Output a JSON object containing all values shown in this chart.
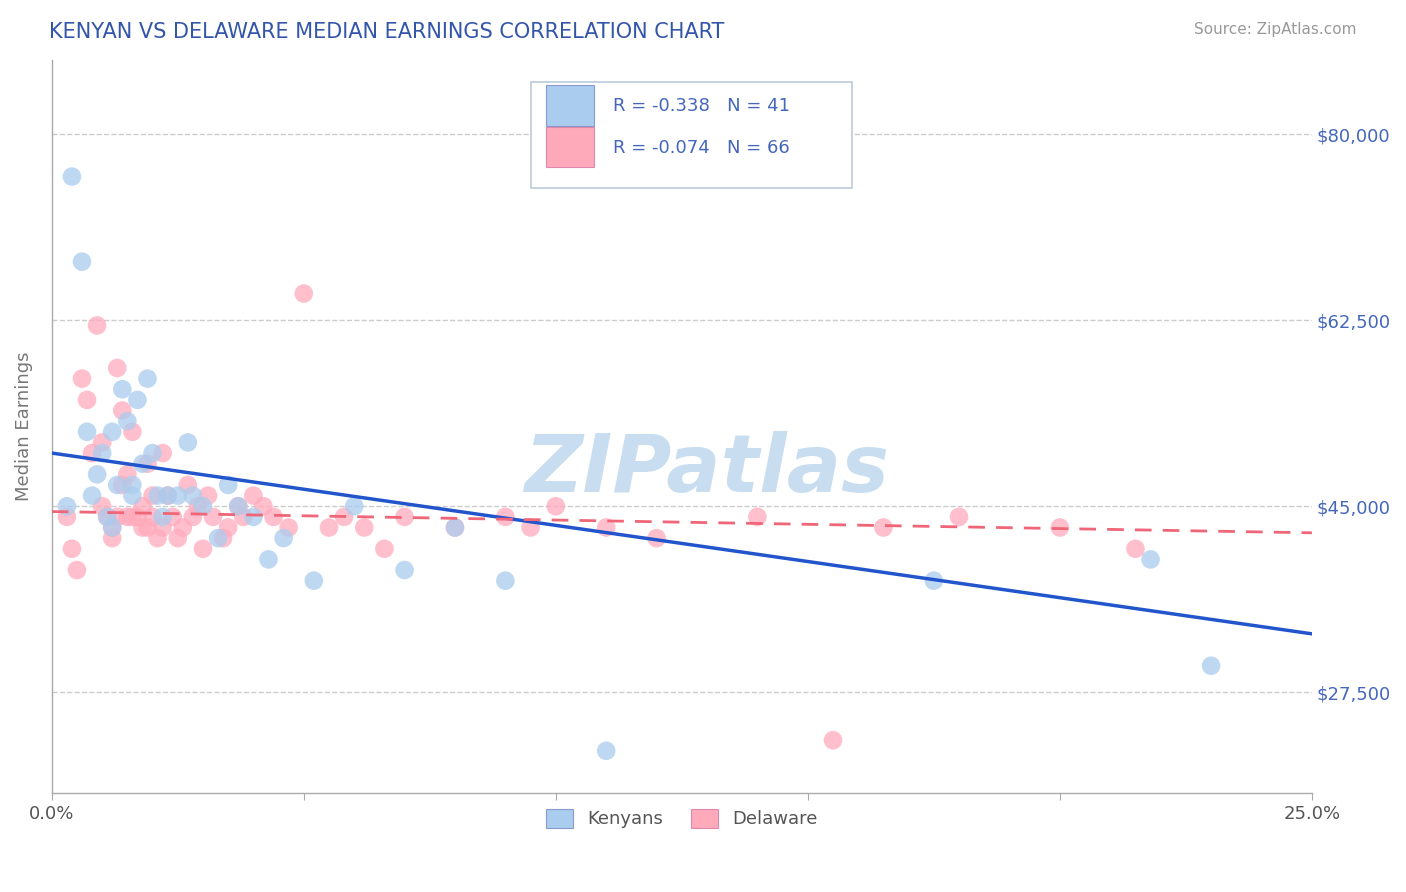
{
  "title": "KENYAN VS DELAWARE MEDIAN EARNINGS CORRELATION CHART",
  "source_text": "Source: ZipAtlas.com",
  "ylabel": "Median Earnings",
  "xmin": 0.0,
  "xmax": 0.25,
  "ymin": 18000,
  "ymax": 87000,
  "yticks": [
    27500,
    45000,
    62500,
    80000
  ],
  "ytick_labels": [
    "$27,500",
    "$45,000",
    "$62,500",
    "$80,000"
  ],
  "xticks": [
    0.0,
    0.05,
    0.1,
    0.15,
    0.2,
    0.25
  ],
  "xtick_labels": [
    "0.0%",
    "",
    "",
    "",
    "",
    "25.0%"
  ],
  "blue_R": -0.338,
  "blue_N": 41,
  "pink_R": -0.074,
  "pink_N": 66,
  "blue_color": "#aaccee",
  "pink_color": "#ffaabb",
  "blue_line_color": "#2255cc",
  "pink_line_color": "#ee6677",
  "title_color": "#3355aa",
  "axis_label_color": "#777777",
  "tick_color": "#4466bb",
  "source_color": "#999999",
  "legend_label_blue": "Kenyans",
  "legend_label_pink": "Delaware",
  "watermark_text": "ZIPatlas",
  "watermark_color": "#c8ddf0",
  "grid_color": "#cccccc",
  "background_color": "#ffffff",
  "blue_x": [
    0.003,
    0.004,
    0.006,
    0.007,
    0.008,
    0.009,
    0.01,
    0.011,
    0.012,
    0.012,
    0.013,
    0.014,
    0.015,
    0.016,
    0.016,
    0.017,
    0.018,
    0.019,
    0.02,
    0.021,
    0.022,
    0.023,
    0.025,
    0.027,
    0.028,
    0.03,
    0.033,
    0.035,
    0.037,
    0.04,
    0.043,
    0.046,
    0.052,
    0.06,
    0.07,
    0.08,
    0.09,
    0.11,
    0.175,
    0.218,
    0.23
  ],
  "blue_y": [
    45000,
    76000,
    68000,
    52000,
    46000,
    48000,
    50000,
    44000,
    43000,
    52000,
    47000,
    56000,
    53000,
    46000,
    47000,
    55000,
    49000,
    57000,
    50000,
    46000,
    44000,
    46000,
    46000,
    51000,
    46000,
    45000,
    42000,
    47000,
    45000,
    44000,
    40000,
    42000,
    38000,
    45000,
    39000,
    43000,
    38000,
    22000,
    38000,
    40000,
    30000
  ],
  "pink_x": [
    0.003,
    0.004,
    0.005,
    0.006,
    0.007,
    0.008,
    0.009,
    0.01,
    0.01,
    0.011,
    0.012,
    0.012,
    0.013,
    0.013,
    0.014,
    0.014,
    0.015,
    0.015,
    0.016,
    0.016,
    0.017,
    0.018,
    0.018,
    0.019,
    0.019,
    0.02,
    0.02,
    0.021,
    0.022,
    0.022,
    0.023,
    0.024,
    0.025,
    0.026,
    0.027,
    0.028,
    0.029,
    0.03,
    0.031,
    0.032,
    0.034,
    0.035,
    0.037,
    0.038,
    0.04,
    0.042,
    0.044,
    0.047,
    0.05,
    0.055,
    0.058,
    0.062,
    0.066,
    0.07,
    0.08,
    0.09,
    0.095,
    0.1,
    0.11,
    0.12,
    0.14,
    0.155,
    0.165,
    0.18,
    0.2,
    0.215
  ],
  "pink_y": [
    44000,
    41000,
    39000,
    57000,
    55000,
    50000,
    62000,
    45000,
    51000,
    44000,
    42000,
    43000,
    58000,
    44000,
    47000,
    54000,
    44000,
    48000,
    52000,
    44000,
    44000,
    45000,
    43000,
    49000,
    43000,
    46000,
    44000,
    42000,
    50000,
    43000,
    46000,
    44000,
    42000,
    43000,
    47000,
    44000,
    45000,
    41000,
    46000,
    44000,
    42000,
    43000,
    45000,
    44000,
    46000,
    45000,
    44000,
    43000,
    65000,
    43000,
    44000,
    43000,
    41000,
    44000,
    43000,
    44000,
    43000,
    45000,
    43000,
    42000,
    44000,
    23000,
    43000,
    44000,
    43000,
    41000
  ]
}
